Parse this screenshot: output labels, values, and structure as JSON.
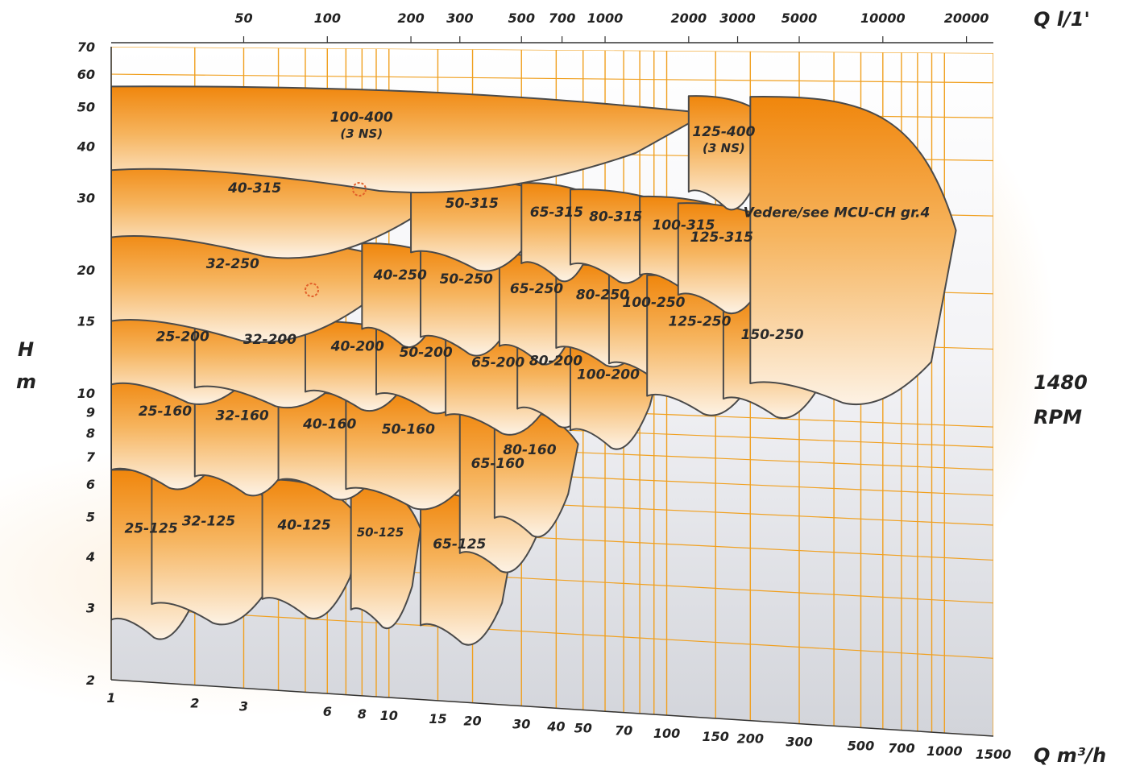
{
  "chart_data": {
    "type": "area",
    "title": "",
    "speed_label": [
      "1480",
      "RPM"
    ],
    "y_axis": {
      "label": [
        "H",
        "m"
      ],
      "scale": "log",
      "ylim": [
        2,
        70
      ],
      "ticks": [
        2,
        3,
        4,
        5,
        6,
        7,
        8,
        9,
        10,
        15,
        20,
        30,
        40,
        50,
        60,
        70
      ]
    },
    "x_axis_top": {
      "label": "Q l/1'",
      "scale": "log",
      "xlim": [
        33,
        25000
      ],
      "ticks": [
        50,
        100,
        200,
        300,
        500,
        700,
        1000,
        2000,
        3000,
        5000,
        10000,
        20000
      ]
    },
    "x_axis_bottom": {
      "label": "Q m³/h",
      "scale": "log",
      "xlim": [
        1,
        1500
      ],
      "ticks": [
        1,
        2,
        3,
        6,
        8,
        10,
        15,
        20,
        30,
        40,
        50,
        70,
        100,
        150,
        200,
        300,
        500,
        700,
        1000,
        1500
      ]
    },
    "grid": true,
    "families": [
      {
        "label": "25-125",
        "q": [
          1,
          2.2
        ],
        "h": [
          2.8,
          6.5
        ]
      },
      {
        "label": "32-125",
        "q": [
          1.4,
          4.3
        ],
        "h": [
          3.1,
          6.6
        ]
      },
      {
        "label": "40-125",
        "q": [
          3.5,
          8
        ],
        "h": [
          3.3,
          6.4
        ]
      },
      {
        "label": "50-125",
        "q": [
          7.3,
          13
        ],
        "h": [
          3.2,
          6.4
        ]
      },
      {
        "label": "65-125",
        "q": [
          13,
          28
        ],
        "h": [
          3.0,
          6.2
        ]
      },
      {
        "label": "25-160",
        "q": [
          1,
          2.9
        ],
        "h": [
          6.5,
          11
        ]
      },
      {
        "label": "32-160",
        "q": [
          2,
          5.1
        ],
        "h": [
          6.4,
          11
        ]
      },
      {
        "label": "40-160",
        "q": [
          4,
          11
        ],
        "h": [
          6.4,
          10.5
        ]
      },
      {
        "label": "50-160",
        "q": [
          7,
          24
        ],
        "h": [
          6.2,
          10.5
        ]
      },
      {
        "label": "65-160",
        "q": [
          18,
          38
        ],
        "h": [
          4.5,
          10
        ]
      },
      {
        "label": "80-160",
        "q": [
          24,
          48
        ],
        "h": [
          5.5,
          10
        ]
      },
      {
        "label": "25-200",
        "q": [
          1,
          4.1
        ],
        "h": [
          10.5,
          16
        ]
      },
      {
        "label": "32-200",
        "q": [
          2,
          8.8
        ],
        "h": [
          10.5,
          16
        ]
      },
      {
        "label": "40-200",
        "q": [
          5,
          14
        ],
        "h": [
          10.5,
          15.5
        ]
      },
      {
        "label": "50-200",
        "q": [
          9,
          24
        ],
        "h": [
          10.5,
          15
        ]
      },
      {
        "label": "65-200",
        "q": [
          16,
          45
        ],
        "h": [
          9.5,
          15
        ]
      },
      {
        "label": "80-200",
        "q": [
          29,
          62
        ],
        "h": [
          10,
          15
        ]
      },
      {
        "label": "100-200",
        "q": [
          45,
          95
        ],
        "h": [
          9,
          14.5
        ]
      },
      {
        "label": "32-250",
        "q": [
          1,
          11
        ],
        "h": [
          15,
          25
        ]
      },
      {
        "label": "40-250",
        "q": [
          8,
          17
        ],
        "h": [
          15,
          24
        ]
      },
      {
        "label": "50-250",
        "q": [
          13,
          32
        ],
        "h": [
          14.5,
          24
        ]
      },
      {
        "label": "65-250",
        "q": [
          25,
          52
        ],
        "h": [
          14,
          23
        ]
      },
      {
        "label": "80-250",
        "q": [
          40,
          100
        ],
        "h": [
          14,
          22
        ]
      },
      {
        "label": "100-250",
        "q": [
          62,
          150
        ],
        "h": [
          13,
          22
        ]
      },
      {
        "label": "125-250",
        "q": [
          85,
          240
        ],
        "h": [
          11,
          21
        ]
      },
      {
        "label": "150-250",
        "q": [
          160,
          420
        ],
        "h": [
          11,
          19
        ]
      },
      {
        "label": "40-315",
        "q": [
          1,
          17
        ],
        "h": [
          24,
          37
        ]
      },
      {
        "label": "50-315",
        "q": [
          12,
          40
        ],
        "h": [
          23,
          35
        ]
      },
      {
        "label": "65-315",
        "q": [
          30,
          60
        ],
        "h": [
          22,
          34
        ]
      },
      {
        "label": "80-315",
        "q": [
          45,
          110
        ],
        "h": [
          22,
          33
        ]
      },
      {
        "label": "100-315",
        "q": [
          80,
          190
        ],
        "h": [
          21,
          32
        ]
      },
      {
        "label": "125-315",
        "q": [
          110,
          260
        ],
        "h": [
          19,
          31
        ]
      },
      {
        "label": "100-400 (3 NS)",
        "q": [
          1,
          140
        ],
        "h": [
          35,
          56
        ]
      },
      {
        "label": "125-400 (3 NS)",
        "q": [
          120,
          240
        ],
        "h": [
          33,
          55
        ]
      },
      {
        "label": "Vedere/see MCU-CH gr.4",
        "q": [
          200,
          1100
        ],
        "h": [
          12,
          55
        ]
      }
    ]
  }
}
